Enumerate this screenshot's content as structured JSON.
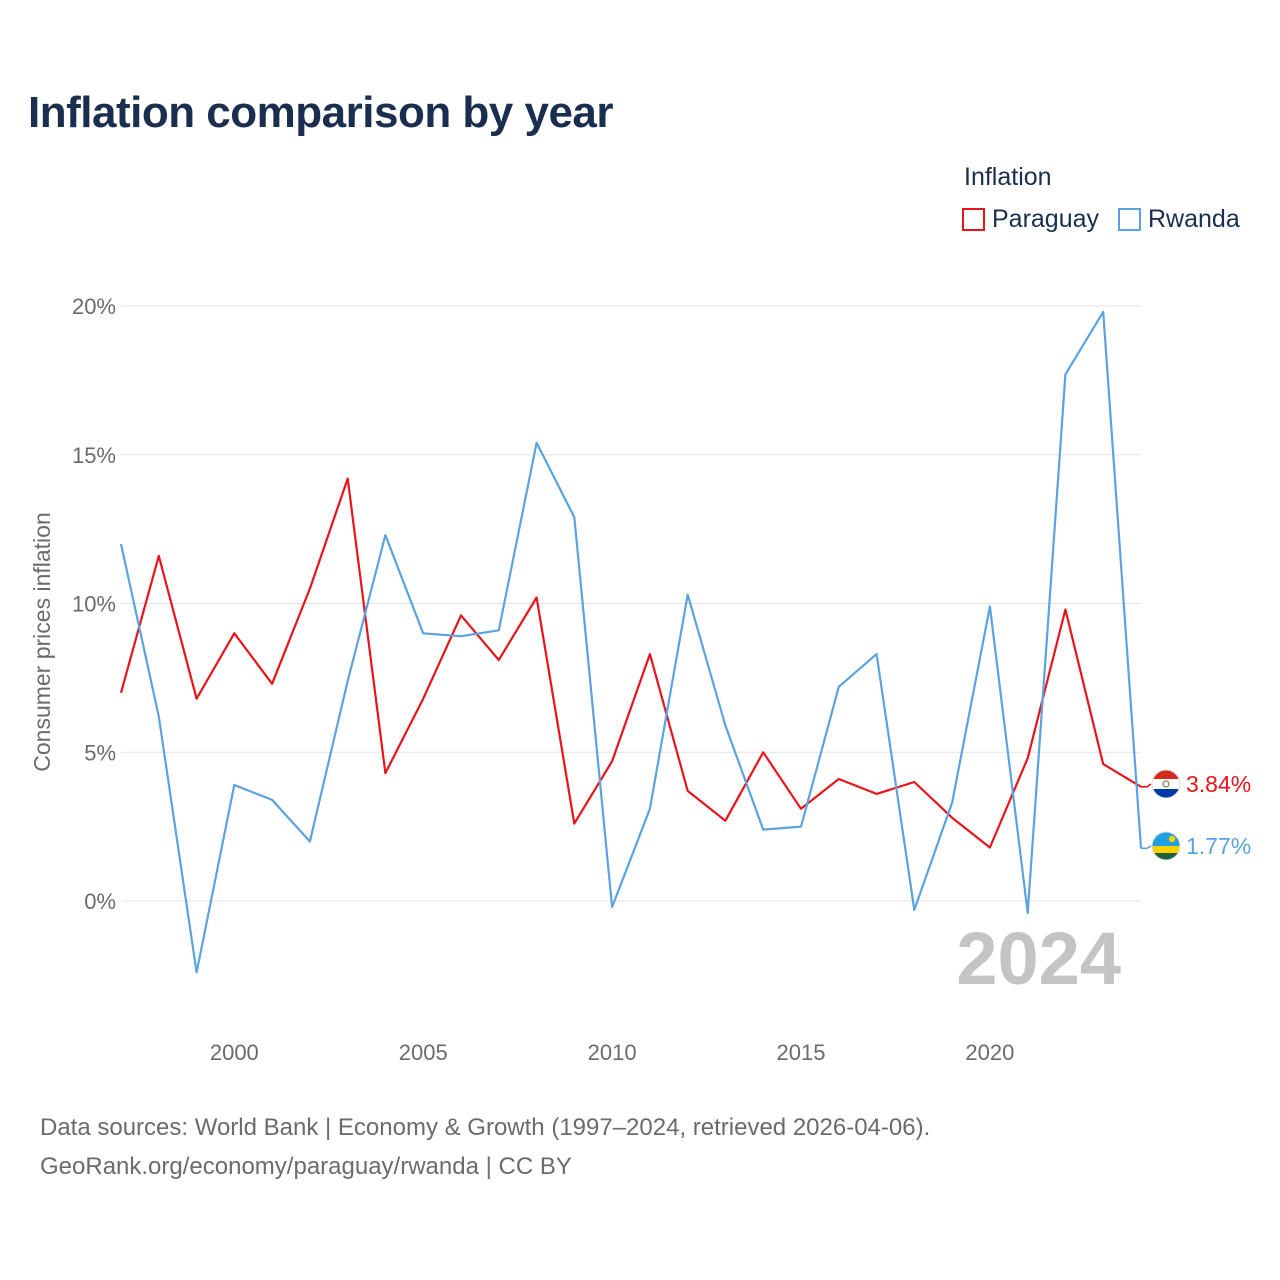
{
  "title": "Inflation comparison by year",
  "legend": {
    "title": "Inflation",
    "items": [
      {
        "label": "Paraguay",
        "color": "#e8141b"
      },
      {
        "label": "Rwanda",
        "color": "#5ba3e0"
      }
    ]
  },
  "chart_data": {
    "type": "line",
    "title": "Inflation comparison by year",
    "xlabel": "",
    "ylabel": "Consumer prices inflation",
    "xlim": [
      1997,
      2024
    ],
    "ylim": [
      -3.5,
      20
    ],
    "y_ticks": [
      0,
      5,
      10,
      15,
      20
    ],
    "y_tick_labels": [
      "0%",
      "5%",
      "10%",
      "15%",
      "20%"
    ],
    "x_ticks": [
      2000,
      2005,
      2010,
      2015,
      2020
    ],
    "x_tick_labels": [
      "2000",
      "2005",
      "2010",
      "2015",
      "2020"
    ],
    "grid": true,
    "x": [
      1997,
      1998,
      1999,
      2000,
      2001,
      2002,
      2003,
      2004,
      2005,
      2006,
      2007,
      2008,
      2009,
      2010,
      2011,
      2012,
      2013,
      2014,
      2015,
      2016,
      2017,
      2018,
      2019,
      2020,
      2021,
      2022,
      2023,
      2024
    ],
    "series": [
      {
        "name": "Paraguay",
        "color": "#e8141b",
        "values": [
          7.0,
          11.6,
          6.8,
          9.0,
          7.3,
          10.5,
          14.2,
          4.3,
          6.8,
          9.6,
          8.1,
          10.2,
          2.6,
          4.7,
          8.3,
          3.7,
          2.7,
          5.0,
          3.1,
          4.1,
          3.6,
          4.0,
          2.8,
          1.8,
          4.8,
          9.8,
          4.6,
          3.84
        ],
        "end_label": "3.84%"
      },
      {
        "name": "Rwanda",
        "color": "#5ba3e0",
        "values": [
          12.0,
          6.2,
          -2.4,
          3.9,
          3.4,
          2.0,
          7.4,
          12.3,
          9.0,
          8.9,
          9.1,
          15.4,
          12.9,
          -0.2,
          3.1,
          10.3,
          5.9,
          2.4,
          2.5,
          7.2,
          8.3,
          -0.3,
          3.3,
          9.9,
          -0.4,
          17.7,
          19.8,
          1.77
        ],
        "end_label": "1.77%"
      }
    ],
    "year_watermark": "2024"
  },
  "source": {
    "line1": "Data sources: World Bank | Economy & Growth (1997–2024, retrieved 2026-04-06).",
    "line2": "GeoRank.org/economy/paraguay/rwanda | CC BY"
  }
}
